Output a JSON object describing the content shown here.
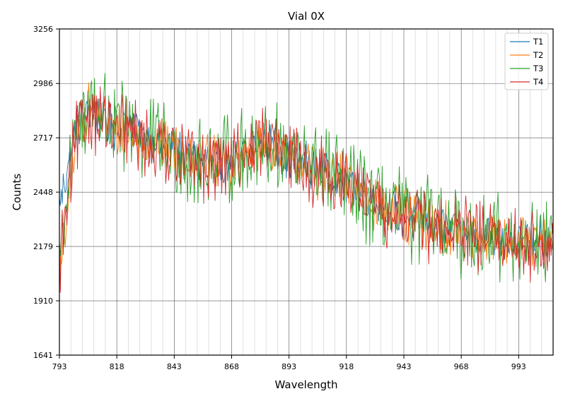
{
  "chart_data": {
    "type": "line",
    "title": "Vial 0X",
    "xlabel": "Wavelength",
    "ylabel": "Counts",
    "xlim": [
      793,
      1008
    ],
    "ylim": [
      1641,
      3256
    ],
    "x_ticks": [
      793,
      818,
      843,
      868,
      893,
      918,
      943,
      968,
      993
    ],
    "y_ticks": [
      1641,
      1910,
      2179,
      2448,
      2717,
      2986,
      3256
    ],
    "grid": true,
    "minor_grid": true,
    "legend_position": "top-right",
    "series": [
      {
        "name": "T1",
        "color": "#1f77b4",
        "points": [
          [
            793,
            2380
          ],
          [
            800,
            2760
          ],
          [
            806,
            2870
          ],
          [
            812,
            2800
          ],
          [
            818,
            2760
          ],
          [
            824,
            2800
          ],
          [
            830,
            2720
          ],
          [
            837,
            2700
          ],
          [
            843,
            2680
          ],
          [
            850,
            2620
          ],
          [
            856,
            2600
          ],
          [
            862,
            2600
          ],
          [
            868,
            2580
          ],
          [
            875,
            2640
          ],
          [
            881,
            2700
          ],
          [
            887,
            2680
          ],
          [
            893,
            2620
          ],
          [
            900,
            2600
          ],
          [
            906,
            2560
          ],
          [
            912,
            2540
          ],
          [
            918,
            2500
          ],
          [
            925,
            2460
          ],
          [
            931,
            2400
          ],
          [
            937,
            2360
          ],
          [
            943,
            2330
          ],
          [
            950,
            2310
          ],
          [
            956,
            2290
          ],
          [
            962,
            2270
          ],
          [
            968,
            2250
          ],
          [
            975,
            2240
          ],
          [
            981,
            2230
          ],
          [
            987,
            2220
          ],
          [
            993,
            2210
          ],
          [
            1000,
            2200
          ],
          [
            1008,
            2200
          ]
        ]
      },
      {
        "name": "T2",
        "color": "#ff7f0e",
        "points": [
          [
            793,
            2000
          ],
          [
            800,
            2680
          ],
          [
            806,
            2900
          ],
          [
            812,
            2820
          ],
          [
            818,
            2750
          ],
          [
            824,
            2760
          ],
          [
            830,
            2700
          ],
          [
            837,
            2690
          ],
          [
            843,
            2670
          ],
          [
            850,
            2610
          ],
          [
            856,
            2600
          ],
          [
            862,
            2590
          ],
          [
            868,
            2580
          ],
          [
            875,
            2630
          ],
          [
            881,
            2690
          ],
          [
            887,
            2670
          ],
          [
            893,
            2610
          ],
          [
            900,
            2590
          ],
          [
            906,
            2550
          ],
          [
            912,
            2520
          ],
          [
            918,
            2490
          ],
          [
            925,
            2450
          ],
          [
            931,
            2390
          ],
          [
            937,
            2350
          ],
          [
            943,
            2330
          ],
          [
            950,
            2300
          ],
          [
            956,
            2280
          ],
          [
            962,
            2260
          ],
          [
            968,
            2240
          ],
          [
            975,
            2230
          ],
          [
            981,
            2220
          ],
          [
            987,
            2220
          ],
          [
            993,
            2200
          ],
          [
            1000,
            2190
          ],
          [
            1008,
            2200
          ]
        ]
      },
      {
        "name": "T3",
        "color": "#2ca02c",
        "points": [
          [
            793,
            2150
          ],
          [
            800,
            2720
          ],
          [
            806,
            2900
          ],
          [
            812,
            2850
          ],
          [
            818,
            2760
          ],
          [
            824,
            2770
          ],
          [
            830,
            2700
          ],
          [
            837,
            2700
          ],
          [
            843,
            2650
          ],
          [
            850,
            2600
          ],
          [
            856,
            2580
          ],
          [
            862,
            2620
          ],
          [
            868,
            2600
          ],
          [
            875,
            2650
          ],
          [
            881,
            2700
          ],
          [
            887,
            2660
          ],
          [
            893,
            2600
          ],
          [
            900,
            2580
          ],
          [
            906,
            2560
          ],
          [
            912,
            2530
          ],
          [
            918,
            2480
          ],
          [
            925,
            2440
          ],
          [
            931,
            2380
          ],
          [
            937,
            2350
          ],
          [
            943,
            2340
          ],
          [
            950,
            2310
          ],
          [
            956,
            2290
          ],
          [
            962,
            2260
          ],
          [
            968,
            2240
          ],
          [
            975,
            2230
          ],
          [
            981,
            2230
          ],
          [
            987,
            2220
          ],
          [
            993,
            2210
          ],
          [
            1000,
            2200
          ],
          [
            1008,
            2220
          ]
        ]
      },
      {
        "name": "T4",
        "color": "#d62728",
        "points": [
          [
            793,
            2100
          ],
          [
            800,
            2700
          ],
          [
            806,
            2850
          ],
          [
            812,
            2800
          ],
          [
            818,
            2740
          ],
          [
            824,
            2750
          ],
          [
            830,
            2690
          ],
          [
            837,
            2680
          ],
          [
            843,
            2660
          ],
          [
            850,
            2600
          ],
          [
            856,
            2570
          ],
          [
            862,
            2590
          ],
          [
            868,
            2590
          ],
          [
            875,
            2650
          ],
          [
            881,
            2720
          ],
          [
            887,
            2670
          ],
          [
            893,
            2600
          ],
          [
            900,
            2590
          ],
          [
            906,
            2550
          ],
          [
            912,
            2520
          ],
          [
            918,
            2480
          ],
          [
            925,
            2440
          ],
          [
            931,
            2390
          ],
          [
            937,
            2350
          ],
          [
            943,
            2330
          ],
          [
            950,
            2300
          ],
          [
            956,
            2280
          ],
          [
            962,
            2260
          ],
          [
            968,
            2240
          ],
          [
            975,
            2230
          ],
          [
            981,
            2220
          ],
          [
            987,
            2210
          ],
          [
            993,
            2200
          ],
          [
            1000,
            2190
          ],
          [
            1008,
            2180
          ]
        ]
      }
    ]
  }
}
